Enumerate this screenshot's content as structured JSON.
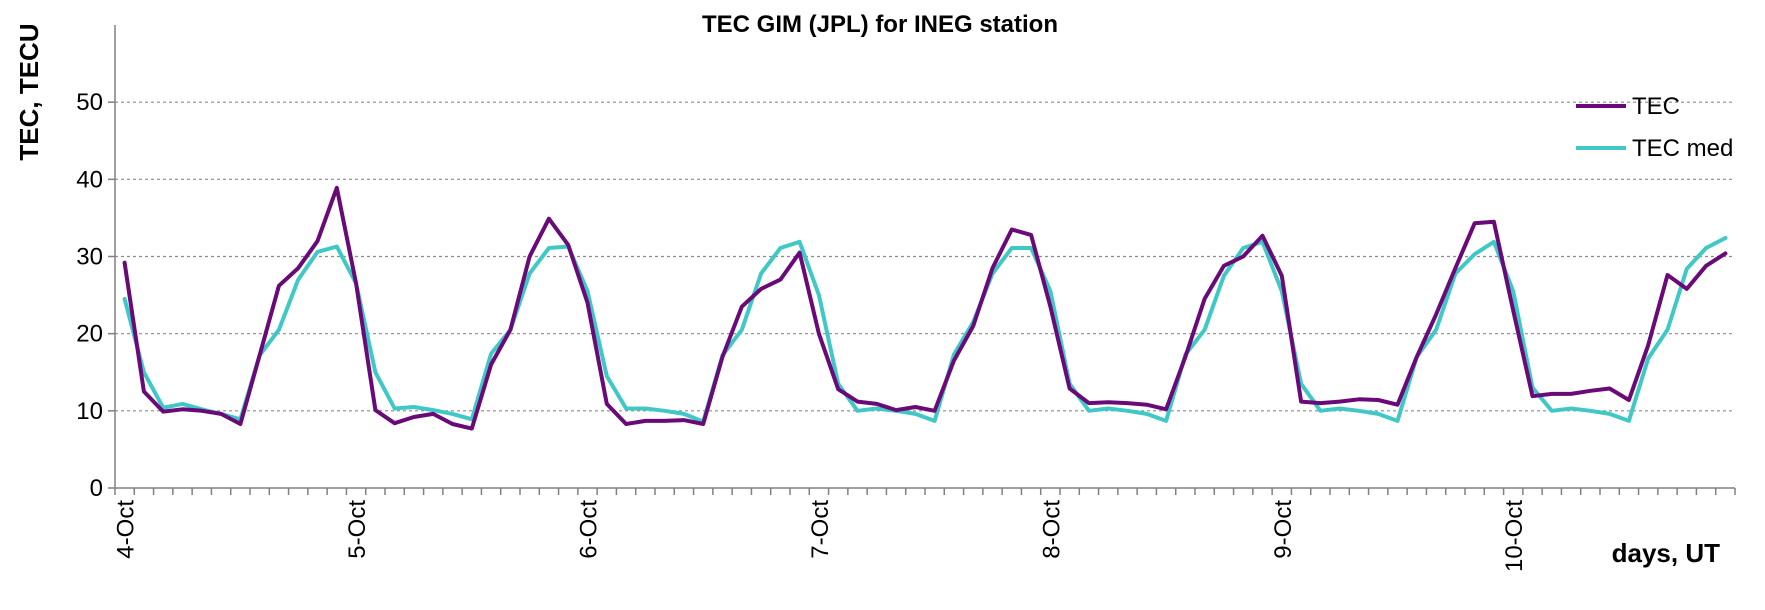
{
  "chart_data": {
    "type": "line",
    "title": "TEC GIM (JPL) for INEG station",
    "xlabel": "days, UT",
    "ylabel": "TEC, TECU",
    "ylim": [
      0,
      60
    ],
    "y_ticks": [
      "0",
      "10",
      "20",
      "30",
      "40",
      "50"
    ],
    "x_step_hours": 2,
    "day_labels": [
      "4-Oct",
      "5-Oct",
      "6-Oct",
      "7-Oct",
      "8-Oct",
      "9-Oct",
      "10-Oct"
    ],
    "grid": "horizontal dotted",
    "legend_position": "top-right",
    "series": [
      {
        "name": "TEC",
        "color": "#6a0a78",
        "values": [
          29.2,
          12.5,
          9.9,
          10.2,
          10.0,
          9.6,
          8.3,
          17.2,
          26.2,
          28.5,
          32.0,
          38.9,
          26.5,
          10.1,
          8.4,
          9.2,
          9.6,
          8.3,
          7.7,
          16.0,
          20.5,
          30.0,
          34.9,
          31.5,
          24.0,
          10.9,
          8.3,
          8.7,
          8.7,
          8.8,
          8.3,
          17.0,
          23.5,
          25.8,
          27.0,
          30.5,
          20.0,
          12.8,
          11.2,
          10.9,
          10.1,
          10.5,
          10.0,
          16.5,
          21.0,
          28.5,
          33.5,
          32.8,
          23.5,
          12.9,
          11.0,
          11.1,
          11.0,
          10.8,
          10.2,
          17.0,
          24.5,
          28.8,
          30.0,
          32.7,
          27.5,
          11.2,
          11.0,
          11.2,
          11.5,
          11.4,
          10.8,
          17.0,
          22.5,
          28.5,
          34.3,
          34.5,
          23.0,
          11.9,
          12.2,
          12.2,
          12.6,
          12.9,
          11.4,
          18.5,
          27.6,
          25.8,
          28.8,
          30.4
        ]
      },
      {
        "name": "TEC med",
        "color": "#3fc8c6",
        "values": [
          24.5,
          15.0,
          10.4,
          10.9,
          10.2,
          9.6,
          8.9,
          17.2,
          20.5,
          27.0,
          30.6,
          31.3,
          26.5,
          15.0,
          10.3,
          10.5,
          10.1,
          9.6,
          8.9,
          17.4,
          20.5,
          27.8,
          31.1,
          31.3,
          25.5,
          14.5,
          10.3,
          10.3,
          10.0,
          9.6,
          8.6,
          17.2,
          20.5,
          27.8,
          31.1,
          31.9,
          25.0,
          13.5,
          10.0,
          10.3,
          10.0,
          9.6,
          8.7,
          17.3,
          21.5,
          27.8,
          31.1,
          31.1,
          25.5,
          13.5,
          10.0,
          10.3,
          10.0,
          9.6,
          8.7,
          17.3,
          20.5,
          27.5,
          31.1,
          31.9,
          25.5,
          13.5,
          10.0,
          10.3,
          10.0,
          9.6,
          8.7,
          17.0,
          20.5,
          27.8,
          30.3,
          31.9,
          25.5,
          13.0,
          10.0,
          10.3,
          10.0,
          9.6,
          8.7,
          16.8,
          20.5,
          28.4,
          31.1,
          32.4
        ]
      }
    ]
  }
}
